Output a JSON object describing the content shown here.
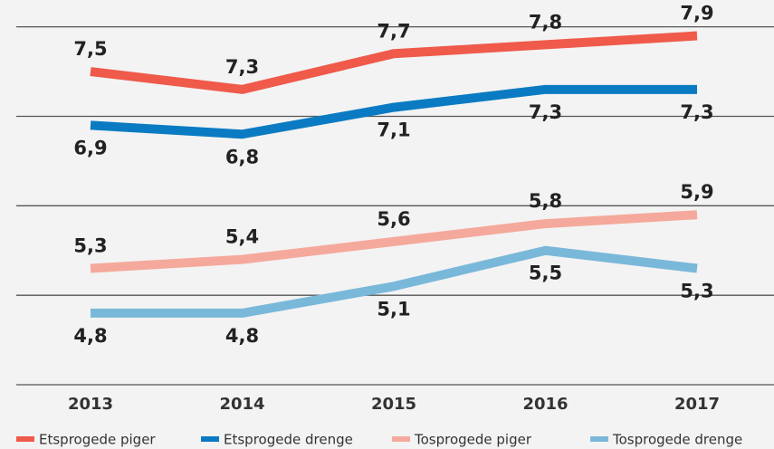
{
  "chart_data": {
    "type": "line",
    "x": [
      "2013",
      "2014",
      "2015",
      "2016",
      "2017"
    ],
    "ylim": [
      4,
      8.3
    ],
    "yticks": [
      4,
      5,
      6,
      7,
      8
    ],
    "grid": true,
    "series": [
      {
        "name": "Etsprogede piger",
        "color": "#ef5a4b",
        "values": [
          7.5,
          7.3,
          7.7,
          7.8,
          7.9
        ],
        "value_labels": [
          "7,5",
          "7,3",
          "7,7",
          "7,8",
          "7,9"
        ]
      },
      {
        "name": "Etsprogede drenge",
        "color": "#0a7bc2",
        "values": [
          6.9,
          6.8,
          7.1,
          7.3,
          7.3
        ],
        "value_labels": [
          "6,9",
          "6,8",
          "7,1",
          "7,3",
          "7,3"
        ]
      },
      {
        "name": "Tosprogede piger",
        "color": "#f5a99c",
        "values": [
          5.3,
          5.4,
          5.6,
          5.8,
          5.9
        ],
        "value_labels": [
          "5,3",
          "5,4",
          "5,6",
          "5,8",
          "5,9"
        ]
      },
      {
        "name": "Tosprogede drenge",
        "color": "#7ab8da",
        "values": [
          4.8,
          4.8,
          5.1,
          5.5,
          5.3
        ],
        "value_labels": [
          "4,8",
          "4,8",
          "5,1",
          "5,5",
          "5,3"
        ]
      }
    ]
  }
}
